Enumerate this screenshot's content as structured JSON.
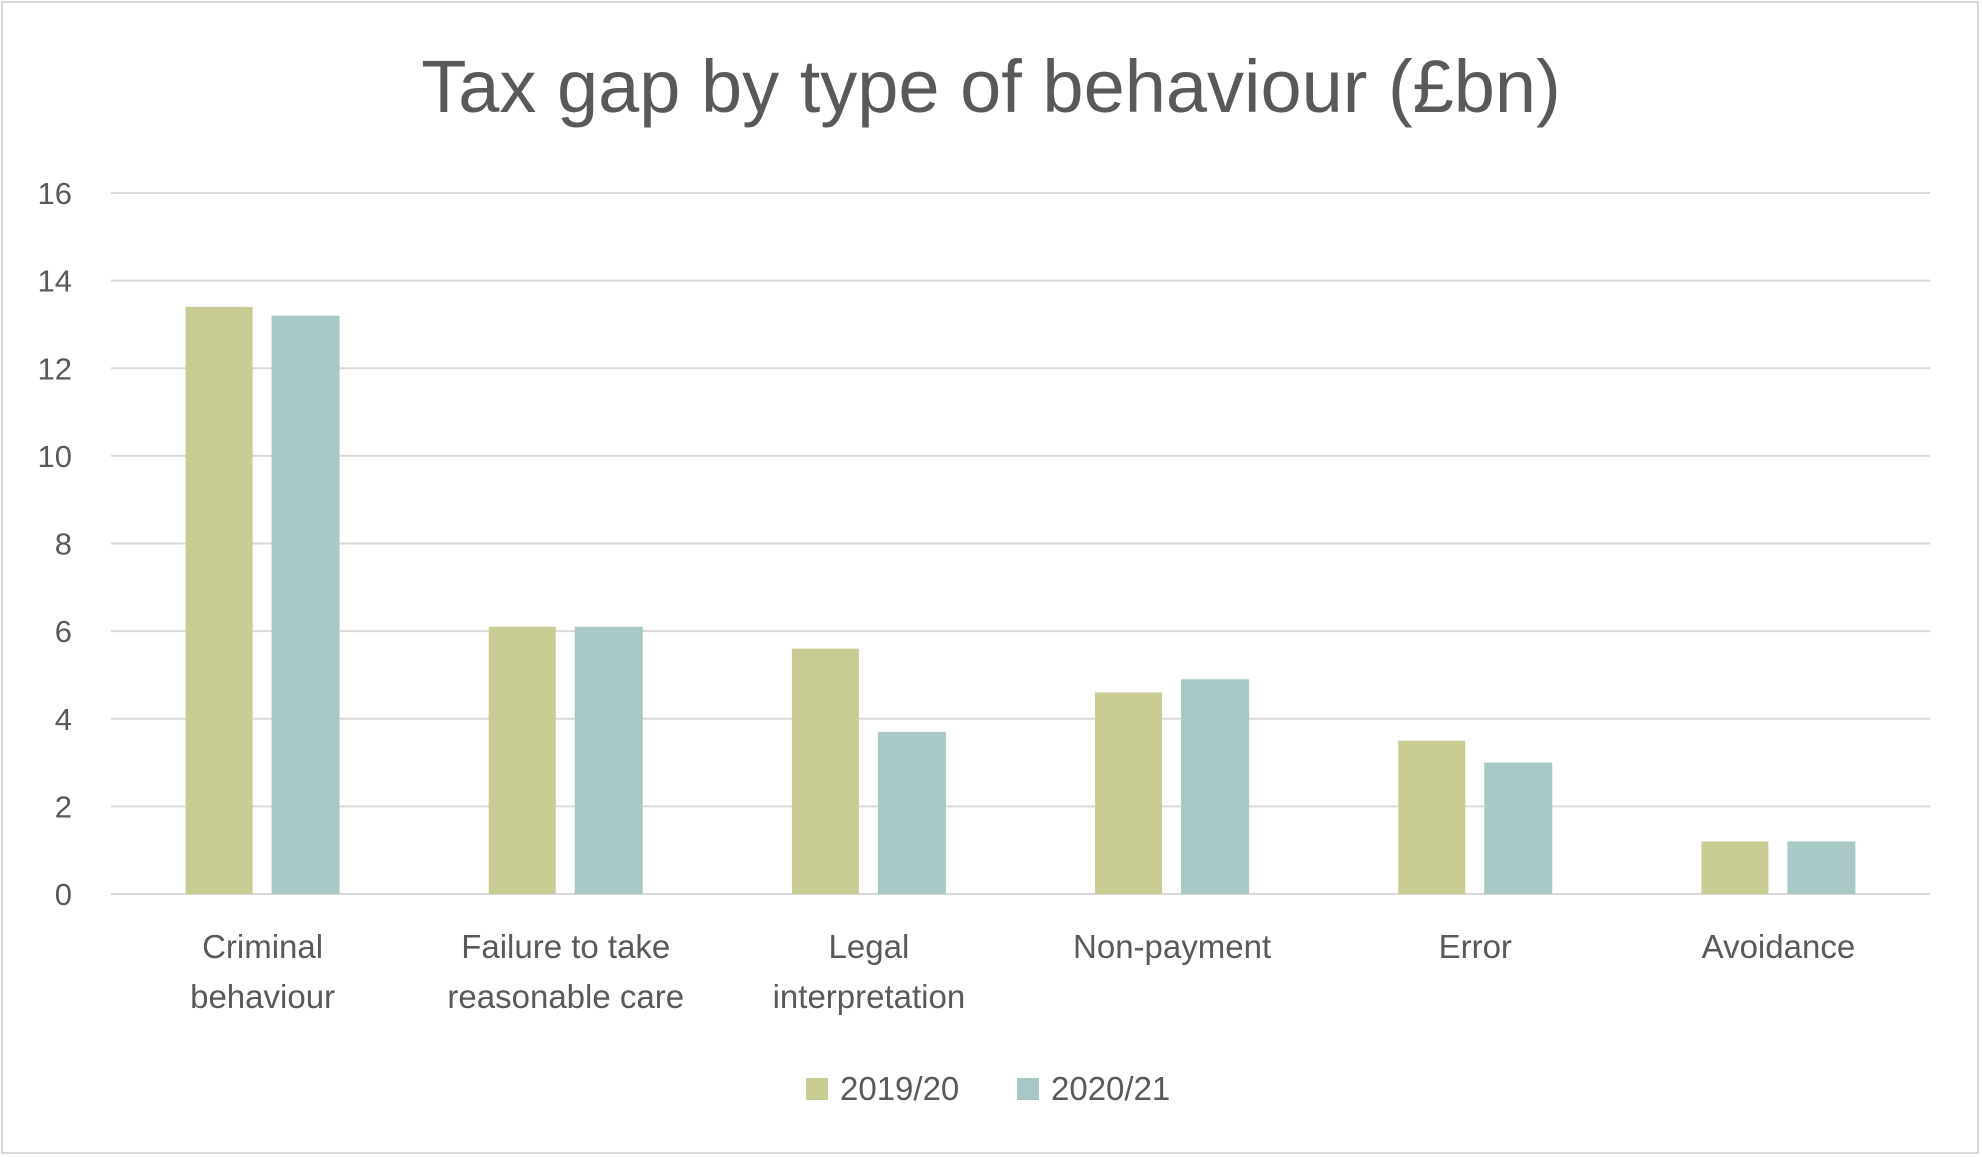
{
  "chart_data": {
    "type": "bar",
    "title": "Tax gap by type of behaviour (£bn)",
    "xlabel": "",
    "ylabel": "",
    "ylim": [
      0,
      16
    ],
    "yticks": [
      0,
      2,
      4,
      6,
      8,
      10,
      12,
      14,
      16
    ],
    "grid": true,
    "legend_position": "bottom",
    "categories": [
      [
        "Criminal",
        "behaviour"
      ],
      [
        "Failure to take",
        "reasonable care"
      ],
      [
        "Legal",
        "interpretation"
      ],
      [
        "Non-payment"
      ],
      [
        "Error"
      ],
      [
        "Avoidance"
      ]
    ],
    "series": [
      {
        "name": "2019/20",
        "color": "#c8cb92",
        "values": [
          13.4,
          6.1,
          5.6,
          4.6,
          3.5,
          1.2
        ]
      },
      {
        "name": "2020/21",
        "color": "#a8c8c6",
        "values": [
          13.2,
          6.1,
          3.7,
          4.9,
          3.0,
          1.2
        ]
      }
    ]
  }
}
